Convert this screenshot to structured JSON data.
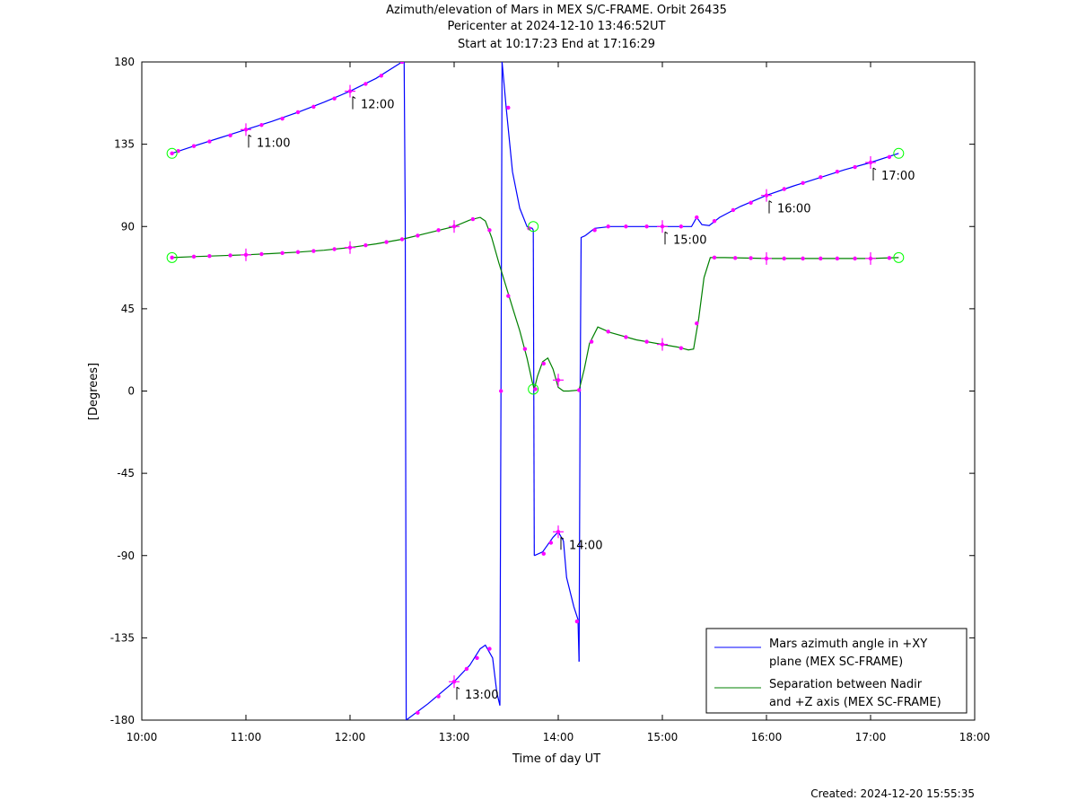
{
  "titles": [
    "Azimuth/elevation of Mars in MEX S/C-FRAME.  Orbit 26435",
    "Pericenter at 2024-12-10 13:46:52UT",
    "Start at 10:17:23 End at 17:16:29"
  ],
  "created_text": "Created: 2024-12-20 15:55:35",
  "chart_data": {
    "type": "line",
    "xlabel": "Time of day UT",
    "ylabel": "[Degrees]",
    "xlim": [
      10,
      18
    ],
    "ylim": [
      -180,
      180
    ],
    "x_ticks": [
      10,
      11,
      12,
      13,
      14,
      15,
      16,
      17,
      18
    ],
    "x_tick_labels": [
      "10:00",
      "11:00",
      "12:00",
      "13:00",
      "14:00",
      "15:00",
      "16:00",
      "17:00",
      "18:00"
    ],
    "y_ticks": [
      180,
      135,
      90,
      45,
      0,
      -45,
      -90,
      -135,
      -180
    ],
    "y_tick_labels": [
      "180",
      "135",
      "90",
      "45",
      "0",
      "-45",
      "-90",
      "-135",
      "-180"
    ],
    "grid": false,
    "legend_position": "bottom-right",
    "legend": [
      {
        "line1": "Mars azimuth angle in +XY",
        "line2": "plane (MEX SC-FRAME)",
        "color": "#0000ff"
      },
      {
        "line1": "Separation between Nadir",
        "line2": "and +Z axis (MEX SC-FRAME)",
        "color": "#008000"
      }
    ],
    "marker_color": "#ff00ff",
    "circle_color": "#00ff00",
    "series": [
      {
        "name": "Mars azimuth angle in +XY plane (MEX SC-FRAME)",
        "color": "#0000ff",
        "segments": [
          [
            [
              10.29,
              130
            ],
            [
              10.5,
              134
            ],
            [
              10.75,
              138.5
            ],
            [
              11.0,
              143
            ],
            [
              11.25,
              147.5
            ],
            [
              11.5,
              152.5
            ],
            [
              11.75,
              158
            ],
            [
              12.0,
              164
            ],
            [
              12.25,
              171
            ],
            [
              12.5,
              180
            ]
          ],
          [
            [
              12.52,
              180
            ],
            [
              12.53,
              95
            ],
            [
              12.54,
              -180
            ]
          ],
          [
            [
              12.54,
              -180
            ],
            [
              12.75,
              -171
            ],
            [
              13.0,
              -159
            ],
            [
              13.15,
              -150
            ],
            [
              13.25,
              -141
            ],
            [
              13.3,
              -139
            ],
            [
              13.37,
              -146
            ],
            [
              13.41,
              -165
            ],
            [
              13.44,
              -172
            ]
          ],
          [
            [
              13.44,
              -172
            ],
            [
              13.45,
              0
            ],
            [
              13.46,
              180
            ]
          ],
          [
            [
              13.46,
              180
            ],
            [
              13.5,
              155
            ],
            [
              13.56,
              120
            ],
            [
              13.63,
              100
            ],
            [
              13.7,
              90
            ],
            [
              13.75,
              89
            ],
            [
              13.76,
              88
            ]
          ],
          [
            [
              13.76,
              88
            ],
            [
              13.77,
              -90
            ]
          ],
          [
            [
              13.77,
              -90
            ],
            [
              13.85,
              -88
            ],
            [
              13.95,
              -80
            ],
            [
              14.0,
              -77
            ],
            [
              14.05,
              -82
            ],
            [
              14.08,
              -102
            ],
            [
              14.15,
              -118
            ],
            [
              14.19,
              -125
            ],
            [
              14.2,
              -148
            ]
          ],
          [
            [
              14.2,
              -148
            ],
            [
              14.21,
              0
            ],
            [
              14.22,
              84
            ],
            [
              14.26,
              85
            ]
          ],
          [
            [
              14.26,
              85
            ],
            [
              14.35,
              89
            ],
            [
              14.5,
              90
            ],
            [
              14.75,
              90
            ],
            [
              15.0,
              90
            ],
            [
              15.2,
              90
            ],
            [
              15.28,
              90
            ],
            [
              15.33,
              95
            ],
            [
              15.38,
              91
            ],
            [
              15.45,
              90.5
            ],
            [
              15.55,
              95
            ],
            [
              15.75,
              101
            ],
            [
              16.0,
              107
            ],
            [
              16.25,
              112
            ],
            [
              16.5,
              116.5
            ],
            [
              16.75,
              121
            ],
            [
              17.0,
              125
            ],
            [
              17.27,
              130
            ]
          ]
        ],
        "markers": [
          [
            10.29,
            130
          ],
          [
            10.35,
            131.3
          ],
          [
            10.5,
            134
          ],
          [
            10.65,
            136.5
          ],
          [
            10.85,
            139.8
          ],
          [
            11.0,
            143
          ],
          [
            11.15,
            145.5
          ],
          [
            11.35,
            149
          ],
          [
            11.5,
            152.5
          ],
          [
            11.65,
            155.5
          ],
          [
            11.85,
            160
          ],
          [
            12.0,
            164
          ],
          [
            12.15,
            168
          ],
          [
            12.3,
            172.5
          ],
          [
            12.5,
            180
          ],
          [
            12.65,
            -176
          ],
          [
            12.85,
            -167
          ],
          [
            13.0,
            -159
          ],
          [
            13.12,
            -152
          ],
          [
            13.22,
            -146
          ],
          [
            13.34,
            -141
          ],
          [
            13.45,
            0
          ],
          [
            13.52,
            155
          ],
          [
            13.72,
            89
          ],
          [
            13.86,
            -89
          ],
          [
            13.93,
            -83
          ],
          [
            14.0,
            -77
          ],
          [
            14.18,
            -126
          ],
          [
            14.35,
            88
          ],
          [
            14.48,
            90
          ],
          [
            14.65,
            90
          ],
          [
            14.85,
            90
          ],
          [
            15.0,
            90
          ],
          [
            15.18,
            90
          ],
          [
            15.33,
            95
          ],
          [
            15.5,
            93
          ],
          [
            15.68,
            99
          ],
          [
            15.85,
            103
          ],
          [
            16.0,
            107
          ],
          [
            16.17,
            110.5
          ],
          [
            16.35,
            113.8
          ],
          [
            16.52,
            117
          ],
          [
            16.68,
            120
          ],
          [
            16.85,
            122.5
          ],
          [
            17.0,
            125
          ],
          [
            17.18,
            128
          ]
        ],
        "hour_markers": [
          [
            11,
            143
          ],
          [
            12,
            164
          ],
          [
            13,
            -159
          ],
          [
            14,
            -77
          ],
          [
            15,
            90
          ],
          [
            16,
            107
          ],
          [
            17,
            125
          ]
        ],
        "circles": [
          [
            10.29,
            130
          ],
          [
            13.76,
            90
          ],
          [
            17.27,
            130
          ]
        ],
        "hour_labels": [
          {
            "x": 11,
            "y": 143,
            "text": "11:00"
          },
          {
            "x": 12,
            "y": 164,
            "text": "12:00"
          },
          {
            "x": 13,
            "y": -159,
            "text": "13:00"
          },
          {
            "x": 14,
            "y": -77,
            "text": "14:00"
          },
          {
            "x": 15,
            "y": 90,
            "text": "15:00"
          },
          {
            "x": 16,
            "y": 107,
            "text": "16:00"
          },
          {
            "x": 17,
            "y": 125,
            "text": "17:00"
          }
        ]
      },
      {
        "name": "Separation between Nadir and +Z axis (MEX SC-FRAME)",
        "color": "#008000",
        "segments": [
          [
            [
              10.29,
              73
            ],
            [
              10.5,
              73.5
            ],
            [
              10.75,
              74
            ],
            [
              11.0,
              74.5
            ],
            [
              11.25,
              75.2
            ],
            [
              11.5,
              76
            ],
            [
              11.75,
              77
            ],
            [
              12.0,
              78.5
            ],
            [
              12.25,
              80.5
            ],
            [
              12.5,
              83
            ],
            [
              12.75,
              86.5
            ],
            [
              13.0,
              90
            ],
            [
              13.15,
              93.5
            ],
            [
              13.25,
              95
            ],
            [
              13.3,
              93
            ],
            [
              13.36,
              84
            ],
            [
              13.43,
              70
            ],
            [
              13.5,
              57
            ],
            [
              13.57,
              44
            ],
            [
              13.63,
              33
            ],
            [
              13.7,
              18
            ],
            [
              13.75,
              5
            ],
            [
              13.77,
              1
            ],
            [
              13.8,
              8
            ],
            [
              13.85,
              16
            ],
            [
              13.9,
              18
            ],
            [
              13.95,
              12
            ],
            [
              14.0,
              2
            ],
            [
              14.05,
              0
            ],
            [
              14.1,
              0
            ],
            [
              14.2,
              0.5
            ],
            [
              14.25,
              12
            ],
            [
              14.3,
              26
            ],
            [
              14.38,
              35
            ],
            [
              14.5,
              32
            ],
            [
              14.75,
              28
            ],
            [
              15.0,
              25.5
            ],
            [
              15.15,
              24
            ],
            [
              15.25,
              22.5
            ],
            [
              15.3,
              23
            ],
            [
              15.35,
              40
            ],
            [
              15.4,
              62
            ],
            [
              15.46,
              73
            ],
            [
              15.6,
              73
            ],
            [
              16.0,
              72.5
            ],
            [
              16.5,
              72.5
            ],
            [
              17.0,
              72.5
            ],
            [
              17.27,
              73
            ]
          ]
        ],
        "markers": [
          [
            10.29,
            73
          ],
          [
            10.5,
            73.5
          ],
          [
            10.65,
            73.8
          ],
          [
            10.85,
            74.2
          ],
          [
            11.0,
            74.5
          ],
          [
            11.15,
            74.9
          ],
          [
            11.35,
            75.5
          ],
          [
            11.5,
            76
          ],
          [
            11.65,
            76.6
          ],
          [
            11.85,
            77.6
          ],
          [
            12.0,
            78.5
          ],
          [
            12.15,
            79.7
          ],
          [
            12.35,
            81.5
          ],
          [
            12.5,
            83
          ],
          [
            12.65,
            85
          ],
          [
            12.85,
            88
          ],
          [
            13.0,
            90
          ],
          [
            13.18,
            94
          ],
          [
            13.34,
            88
          ],
          [
            13.52,
            52
          ],
          [
            13.68,
            23
          ],
          [
            13.78,
            1
          ],
          [
            13.86,
            15
          ],
          [
            14.0,
            6
          ],
          [
            14.2,
            0.5
          ],
          [
            14.32,
            27
          ],
          [
            14.48,
            32.5
          ],
          [
            14.65,
            29.5
          ],
          [
            14.85,
            27
          ],
          [
            15.0,
            25.5
          ],
          [
            15.18,
            23.5
          ],
          [
            15.33,
            37
          ],
          [
            15.5,
            73
          ],
          [
            15.7,
            72.8
          ],
          [
            15.85,
            72.7
          ],
          [
            16.0,
            72.5
          ],
          [
            16.17,
            72.5
          ],
          [
            16.35,
            72.5
          ],
          [
            16.52,
            72.5
          ],
          [
            16.68,
            72.5
          ],
          [
            16.85,
            72.5
          ],
          [
            17.0,
            72.5
          ],
          [
            17.18,
            72.8
          ]
        ],
        "hour_markers": [
          [
            11,
            74.5
          ],
          [
            12,
            78.5
          ],
          [
            13,
            90
          ],
          [
            14,
            6
          ],
          [
            15,
            25.5
          ],
          [
            16,
            72.5
          ],
          [
            17,
            72.5
          ]
        ],
        "circles": [
          [
            10.29,
            73
          ],
          [
            13.76,
            1
          ],
          [
            17.27,
            73
          ]
        ]
      }
    ]
  }
}
